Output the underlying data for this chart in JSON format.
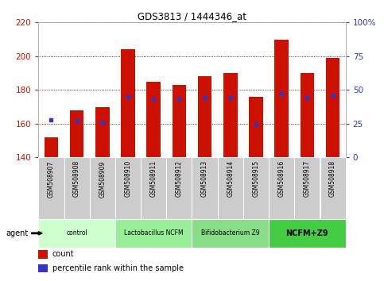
{
  "title": "GDS3813 / 1444346_at",
  "samples": [
    "GSM508907",
    "GSM508908",
    "GSM508909",
    "GSM508910",
    "GSM508911",
    "GSM508912",
    "GSM508913",
    "GSM508914",
    "GSM508915",
    "GSM508916",
    "GSM508917",
    "GSM508918"
  ],
  "count_values": [
    152,
    168,
    170,
    204,
    185,
    183,
    188,
    190,
    176,
    210,
    190,
    199
  ],
  "percentile_values": [
    28,
    27,
    26,
    45,
    43,
    43,
    44,
    44,
    24,
    47,
    44,
    46
  ],
  "y_min": 140,
  "y_max": 220,
  "y_ticks": [
    140,
    160,
    180,
    200,
    220
  ],
  "y2_ticks": [
    0,
    25,
    50,
    75,
    100
  ],
  "bar_color": "#cc1100",
  "dot_color": "#3333cc",
  "bar_width": 0.55,
  "groups": [
    {
      "label": "control",
      "start": 0,
      "end": 3,
      "color": "#ccffcc"
    },
    {
      "label": "Lactobacillus NCFM",
      "start": 3,
      "end": 6,
      "color": "#99ee99"
    },
    {
      "label": "Bifidobacterium Z9",
      "start": 6,
      "end": 9,
      "color": "#88dd88"
    },
    {
      "label": "NCFM+Z9",
      "start": 9,
      "end": 12,
      "color": "#44cc44"
    }
  ],
  "agent_label": "agent",
  "legend_count_label": "count",
  "legend_pct_label": "percentile rank within the sample",
  "left_tick_color": "#cc1100",
  "right_tick_color": "#3333cc",
  "background_color": "#ffffff",
  "plot_bg_color": "#ffffff",
  "grid_color": "#000000",
  "tick_label_bg": "#cccccc",
  "figsize": [
    4.83,
    3.54
  ],
  "dpi": 100
}
